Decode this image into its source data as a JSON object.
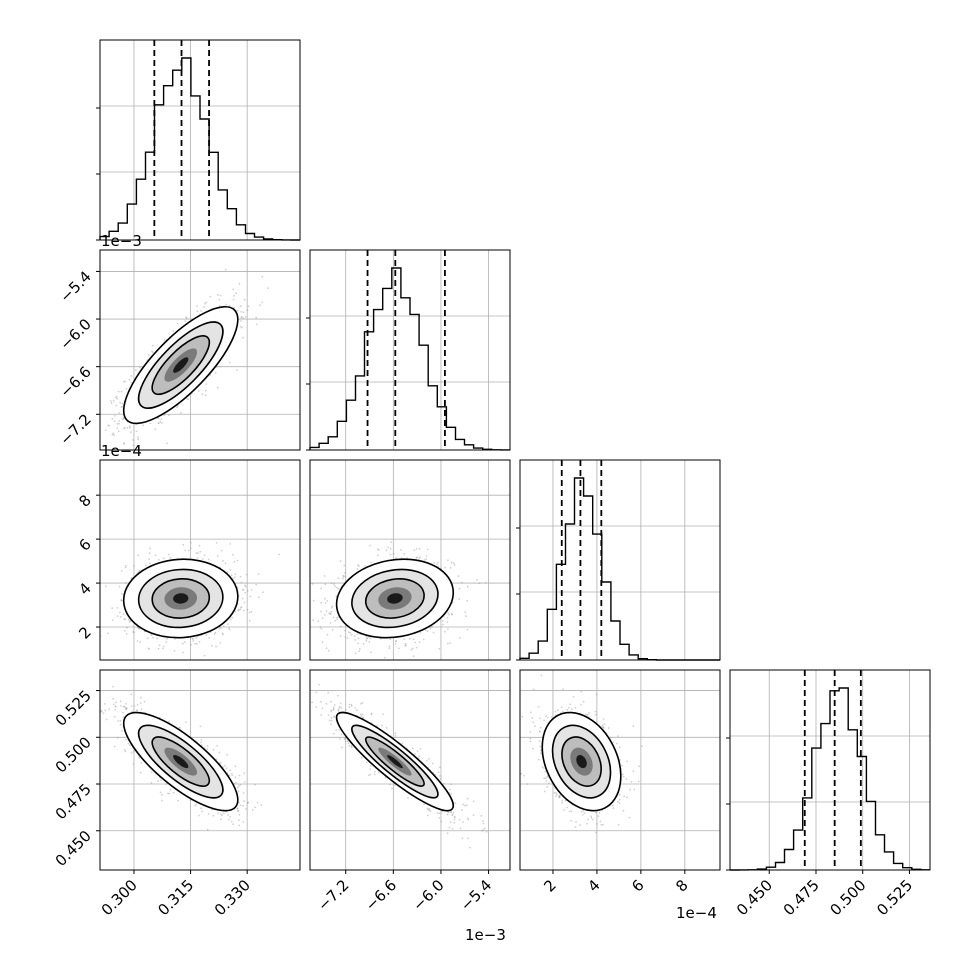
{
  "chart_data": {
    "type": "corner",
    "grid": true,
    "colors": {
      "hist": "#000000",
      "contour": "#000000",
      "points": "#9a9a9a",
      "grid": "#b0b0b0",
      "quantile": "#000000"
    },
    "params": [
      {
        "range": [
          0.291,
          0.344
        ],
        "mean": 0.3124,
        "sd": 0.0072,
        "q": [
          0.3054,
          0.3126,
          0.3199
        ]
      },
      {
        "range": [
          -7.65,
          -5.13
        ],
        "mean": -6.58,
        "sd": 0.35,
        "q": [
          -6.925,
          -6.575,
          -5.95
        ]
      },
      {
        "range": [
          0.5,
          9.6
        ],
        "mean": 3.3,
        "sd": 0.85,
        "q": [
          2.4,
          3.25,
          4.2
        ]
      },
      {
        "range": [
          0.429,
          0.536
        ],
        "mean": 0.487,
        "sd": 0.0125,
        "q": [
          0.469,
          0.485,
          0.499
        ]
      }
    ],
    "correlations": {
      "1-0": 0.78,
      "2-0": 0.05,
      "2-1": 0.15,
      "3-0": -0.78,
      "3-1": -0.9,
      "3-2": -0.3
    },
    "ticks": {
      "x": [
        {
          "values": [
            0.3,
            0.315,
            0.33
          ],
          "labels": [
            "0.300",
            "0.315",
            "0.330"
          ]
        },
        {
          "values": [
            -7.2,
            -6.6,
            -6.0,
            -5.4
          ],
          "labels": [
            "−7.2",
            "−6.6",
            "−6.0",
            "−5.4"
          ]
        },
        {
          "values": [
            2,
            4,
            6,
            8
          ],
          "labels": [
            "2",
            "4",
            "6",
            "8"
          ]
        },
        {
          "values": [
            0.45,
            0.475,
            0.5,
            0.525
          ],
          "labels": [
            "0.450",
            "0.475",
            "0.500",
            "0.525"
          ]
        }
      ],
      "y": [
        null,
        {
          "values": [
            -5.4,
            -6.0,
            -6.6,
            -7.2
          ],
          "labels": [
            "−5.4",
            "−6.0",
            "−6.6",
            "−7.2"
          ]
        },
        {
          "values": [
            8,
            6,
            4,
            2
          ],
          "labels": [
            "8",
            "6",
            "4",
            "2"
          ]
        },
        {
          "values": [
            0.525,
            0.5,
            0.475,
            0.45
          ],
          "labels": [
            "0.525",
            "0.500",
            "0.475",
            "0.450"
          ]
        }
      ]
    },
    "offset_labels": {
      "row0_top": "1e−3",
      "row1_top": "1e−4",
      "x_param1": "1e−3",
      "x_param2": "1e−4"
    }
  }
}
